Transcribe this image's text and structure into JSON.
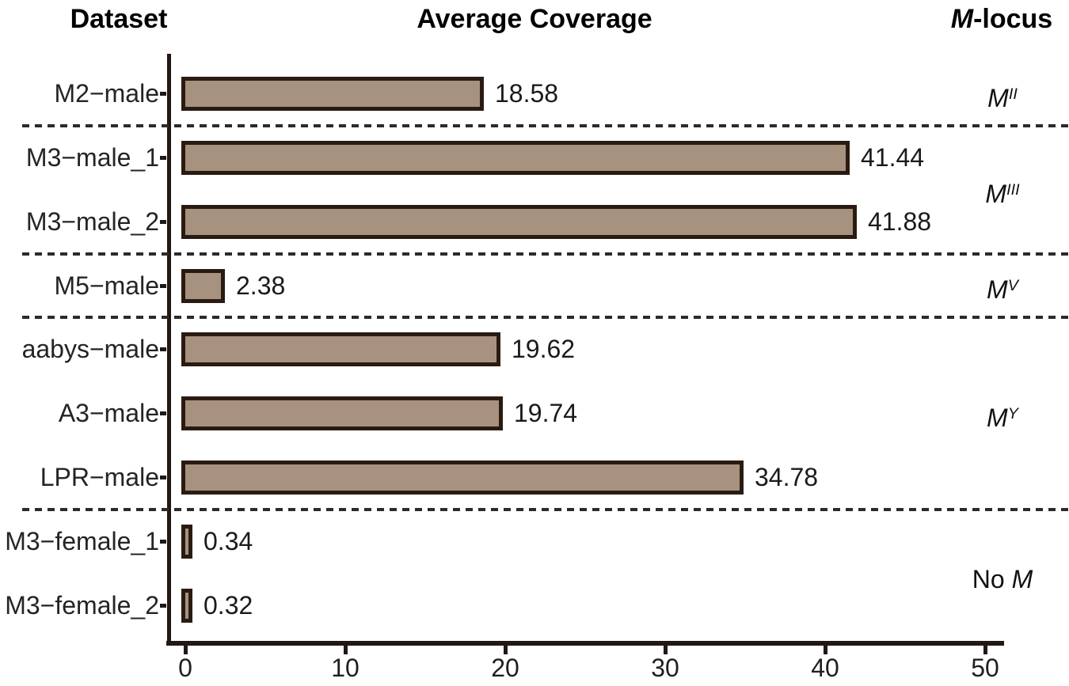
{
  "chart_data": {
    "type": "bar",
    "orientation": "horizontal",
    "column_headers": {
      "left": "Dataset",
      "center": "Average Coverage",
      "right_base": "M",
      "right_rest": "-locus"
    },
    "x_axis": {
      "min": 0,
      "max": 50,
      "ticks": [
        "0",
        "10",
        "20",
        "30",
        "40",
        "50"
      ]
    },
    "grid": false,
    "legend": false,
    "colors": {
      "bar_fill": "#a6927e",
      "bar_border": "#2a1b12",
      "axis": "#221813",
      "separator": "#2b2b2b",
      "text": "#1f1f1f"
    },
    "rows": [
      {
        "label": "M2−male",
        "value": 18.58,
        "value_label": "18.58",
        "group": "MII"
      },
      {
        "label": "M3−male_1",
        "value": 41.44,
        "value_label": "41.44",
        "group": "MIII"
      },
      {
        "label": "M3−male_2",
        "value": 41.88,
        "value_label": "41.88",
        "group": "MIII"
      },
      {
        "label": "M5−male",
        "value": 2.38,
        "value_label": "2.38",
        "group": "MV"
      },
      {
        "label": "aabys−male",
        "value": 19.62,
        "value_label": "19.62",
        "group": "MY"
      },
      {
        "label": "A3−male",
        "value": 19.74,
        "value_label": "19.74",
        "group": "MY"
      },
      {
        "label": "LPR−male",
        "value": 34.78,
        "value_label": "34.78",
        "group": "MY"
      },
      {
        "label": "M3−female_1",
        "value": 0.34,
        "value_label": "0.34",
        "group": "No M"
      },
      {
        "label": "M3−female_2",
        "value": 0.32,
        "value_label": "0.32",
        "group": "No M"
      }
    ],
    "locus_labels": [
      {
        "prefix": "",
        "base": "M",
        "sup": "II"
      },
      {
        "prefix": "",
        "base": "M",
        "sup": "III"
      },
      {
        "prefix": "",
        "base": "M",
        "sup": "V"
      },
      {
        "prefix": "",
        "base": "M",
        "sup": "Y"
      },
      {
        "prefix": "No ",
        "base": "M",
        "sup": ""
      }
    ]
  }
}
